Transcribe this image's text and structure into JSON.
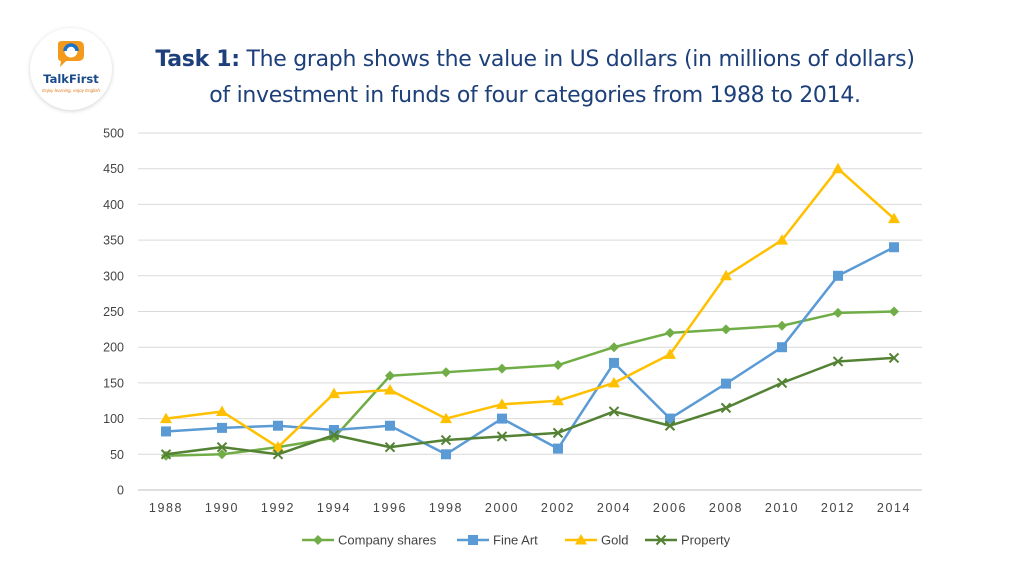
{
  "brand": {
    "name": "TalkFirst",
    "tagline": "Enjoy learning, enjoy English"
  },
  "title": {
    "lead": "Task 1:",
    "line1": "The graph shows the value in US dollars (in millions of dollars)",
    "line2": "of investment in funds of four categories from 1988 to 2014."
  },
  "chart_data": {
    "type": "line",
    "title": "",
    "xlabel": "",
    "ylabel": "",
    "categories": [
      "1988",
      "1990",
      "1992",
      "1994",
      "1996",
      "1998",
      "2000",
      "2002",
      "2004",
      "2006",
      "2008",
      "2010",
      "2012",
      "2014"
    ],
    "ylim": [
      0,
      500
    ],
    "yticks": [
      0,
      50,
      100,
      150,
      200,
      250,
      300,
      350,
      400,
      450,
      500
    ],
    "grid": true,
    "legend_position": "bottom",
    "series": [
      {
        "name": "Company shares",
        "color": "#70ad47",
        "marker": "diamond",
        "values": [
          48,
          50,
          60,
          73,
          160,
          165,
          170,
          175,
          200,
          220,
          225,
          230,
          248,
          250
        ]
      },
      {
        "name": "Fine Art",
        "color": "#5b9bd5",
        "marker": "square",
        "values": [
          82,
          87,
          90,
          84,
          90,
          50,
          100,
          58,
          178,
          100,
          149,
          200,
          300,
          340
        ]
      },
      {
        "name": "Gold",
        "color": "#ffc000",
        "marker": "triangle",
        "values": [
          100,
          110,
          60,
          135,
          140,
          100,
          120,
          125,
          150,
          190,
          300,
          350,
          450,
          380
        ]
      },
      {
        "name": "Property",
        "color": "#548235",
        "marker": "x",
        "values": [
          50,
          60,
          50,
          77,
          60,
          70,
          75,
          80,
          110,
          90,
          115,
          150,
          180,
          185
        ]
      }
    ]
  }
}
